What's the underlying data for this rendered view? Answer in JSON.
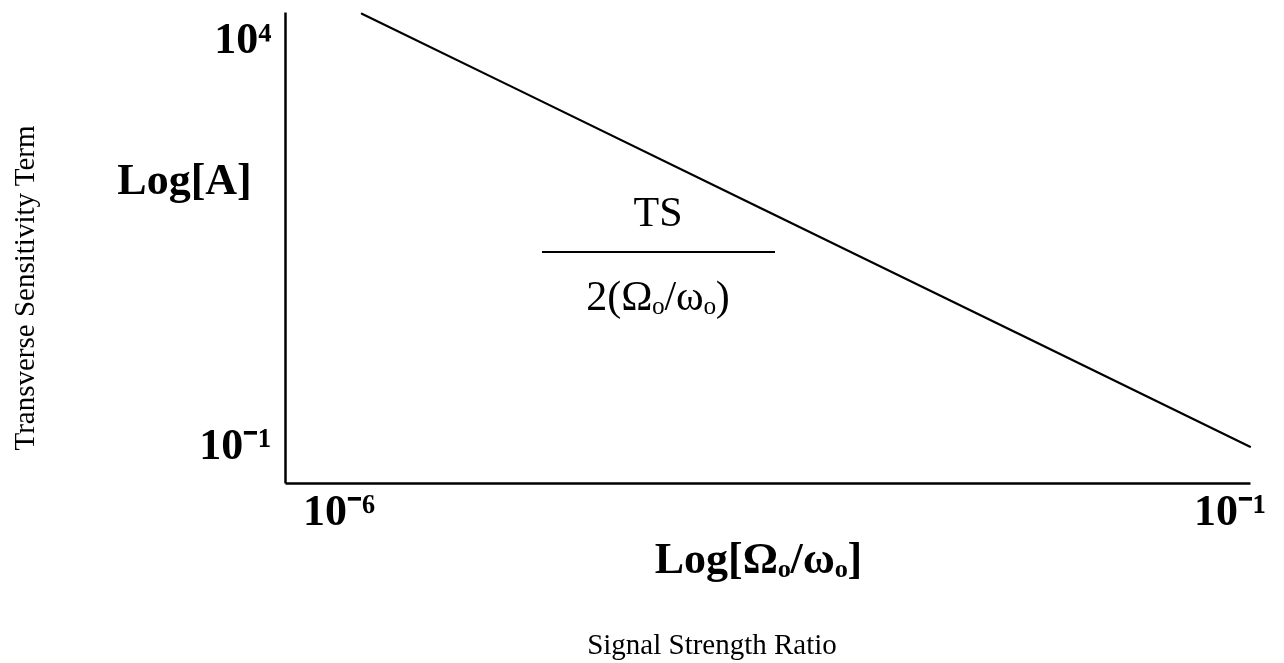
{
  "chart_data": {
    "type": "line",
    "xlabel": "Log[Ωₒ/ωₒ]",
    "ylabel": "Log[A]",
    "annotations": [
      "Transverse Sensitivity Term",
      "Signal Strength Ratio",
      "TS\n2(Ωₒ/ωₒ)"
    ],
    "series": [
      {
        "color": "#000000",
        "x": [
          1.35e-06,
          0.13
        ],
        "values": [
          21000,
          0.098
        ]
      }
    ],
    "xlim": [
      5e-07,
      0.13
    ],
    "ylim": [
      0.035,
      22000
    ],
    "xticks": [
      {
        "value": 1e-06,
        "label": "10⁻⁶"
      },
      {
        "value": 0.1,
        "label": "10⁻¹"
      }
    ],
    "yticks": [
      {
        "value": 10000,
        "label": "10⁴"
      },
      {
        "value": 0.1,
        "label": "10⁻¹"
      }
    ],
    "log": "xy",
    "grid": false
  }
}
